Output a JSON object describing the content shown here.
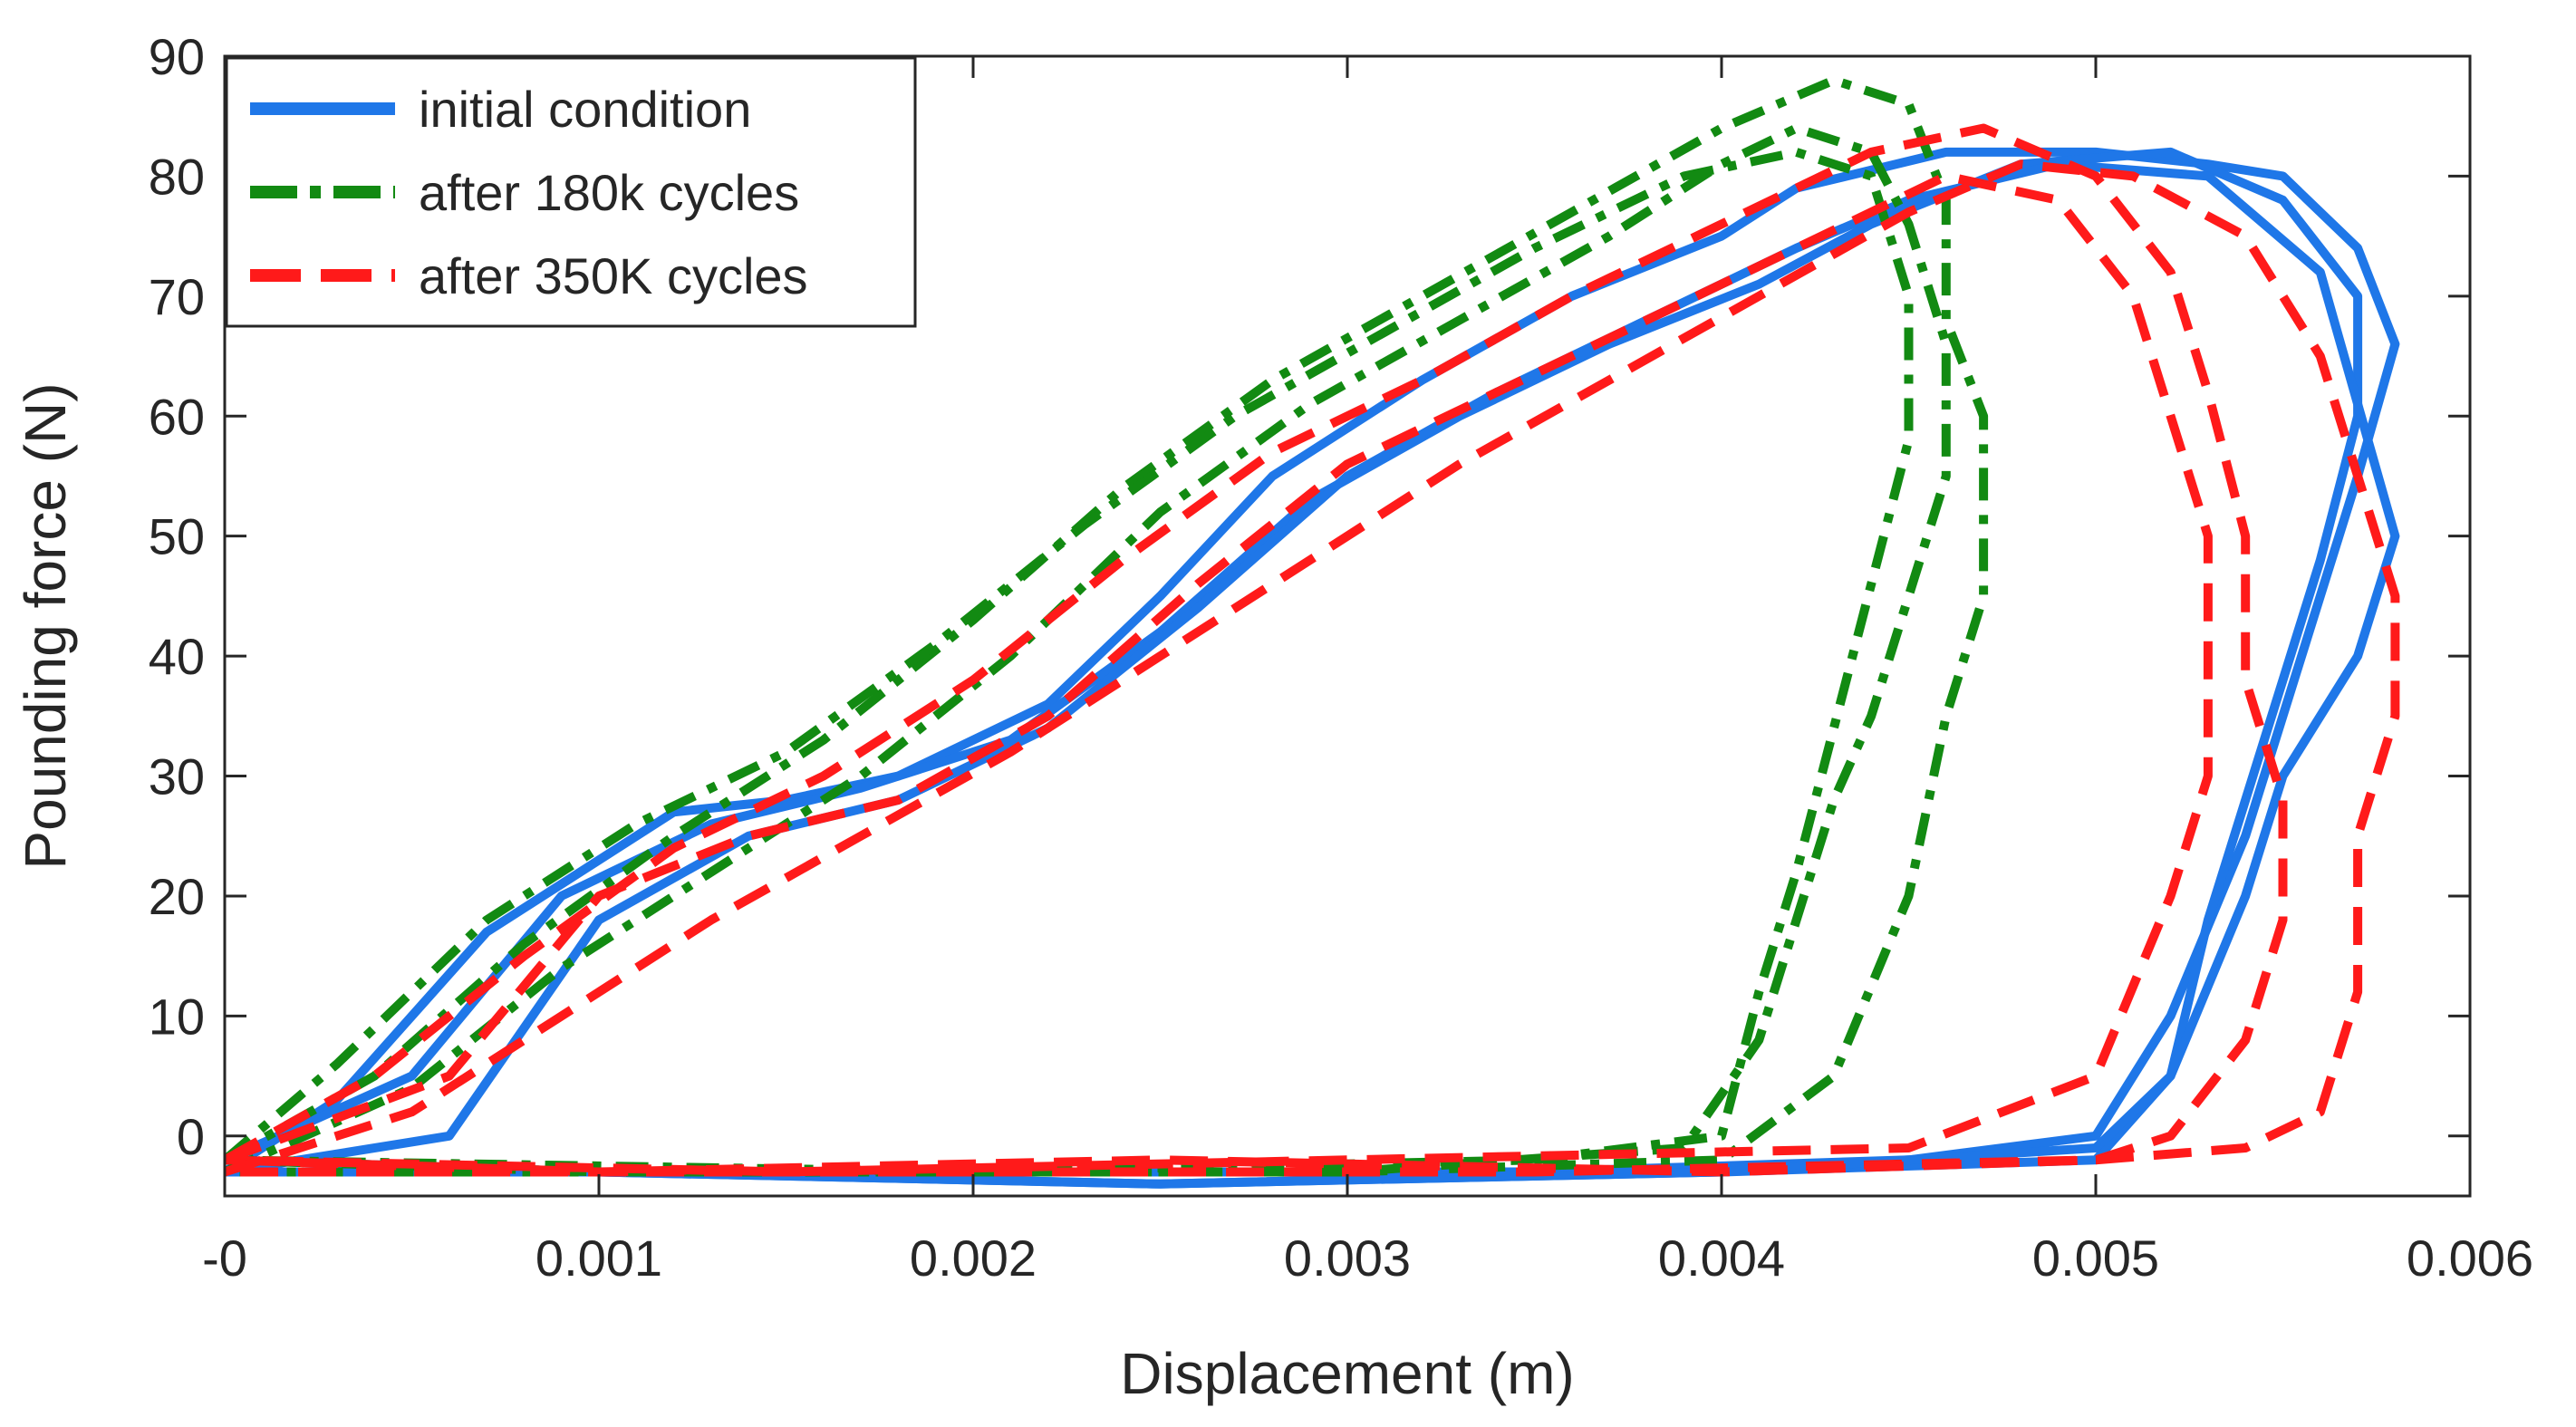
{
  "chart_data": {
    "type": "line",
    "title": "",
    "xlabel": "Displacement (m)",
    "ylabel": "Pounding force (N)",
    "xlim": [
      0,
      0.006
    ],
    "ylim": [
      -5,
      90
    ],
    "xticks": [
      0,
      0.001,
      0.002,
      0.003,
      0.004,
      0.005,
      0.006
    ],
    "xtick_labels": [
      "-0",
      "0.001",
      "0.002",
      "0.003",
      "0.004",
      "0.005",
      "0.006"
    ],
    "yticks": [
      0,
      10,
      20,
      30,
      40,
      50,
      60,
      70,
      80,
      90
    ],
    "ytick_labels": [
      "0",
      "10",
      "20",
      "30",
      "40",
      "50",
      "60",
      "70",
      "80",
      "90"
    ],
    "grid": false,
    "legend_position": "top-left",
    "series": [
      {
        "name": "initial condition",
        "color": "#1f77e8",
        "style": "solid",
        "loops": [
          {
            "x": [
              0.0,
              0.0003,
              0.0007,
              0.0012,
              0.0015,
              0.0018,
              0.0022,
              0.0025,
              0.0028,
              0.0032,
              0.0036,
              0.004,
              0.0042,
              0.0046,
              0.005,
              0.0053,
              0.0055,
              0.0057,
              0.0058,
              0.0057,
              0.0056,
              0.0055,
              0.0054,
              0.0052,
              0.005,
              0.0045,
              0.0035,
              0.002,
              0.001,
              0.0
            ],
            "y": [
              -3,
              3,
              17,
              27,
              28,
              30,
              36,
              45,
              55,
              63,
              70,
              75,
              79,
              82,
              82,
              81,
              80,
              74,
              66,
              55,
              45,
              35,
              25,
              10,
              0,
              -2,
              -3,
              -3,
              -3,
              -3
            ]
          },
          {
            "x": [
              0.0,
              0.0005,
              0.0009,
              0.0013,
              0.0017,
              0.0021,
              0.0025,
              0.0029,
              0.0033,
              0.0037,
              0.0041,
              0.0044,
              0.0048,
              0.0052,
              0.0055,
              0.0057,
              0.0057,
              0.0056,
              0.0055,
              0.0054,
              0.0053,
              0.0052,
              0.005,
              0.004,
              0.0025,
              0.001,
              0.0
            ],
            "y": [
              -2,
              5,
              20,
              26,
              29,
              33,
              42,
              53,
              60,
              66,
              71,
              76,
              81,
              82,
              78,
              70,
              60,
              48,
              38,
              28,
              18,
              5,
              -2,
              -3,
              -4,
              -3,
              -2
            ]
          },
          {
            "x": [
              0.0,
              0.0006,
              0.001,
              0.0014,
              0.0018,
              0.0022,
              0.0026,
              0.003,
              0.0034,
              0.0038,
              0.0042,
              0.0045,
              0.0049,
              0.0053,
              0.0056,
              0.0058,
              0.0057,
              0.0055,
              0.0054,
              0.0052,
              0.005,
              0.004,
              0.0025,
              0.001,
              0.0
            ],
            "y": [
              -3,
              0,
              18,
              25,
              28,
              34,
              44,
              55,
              62,
              68,
              74,
              78,
              81,
              80,
              72,
              50,
              40,
              30,
              20,
              5,
              -1,
              -3,
              -4,
              -3,
              -3
            ]
          }
        ]
      },
      {
        "name": "after 180k cycles",
        "color": "#128a12",
        "style": "dashdot",
        "loops": [
          {
            "x": [
              0.0,
              0.0004,
              0.0008,
              0.0012,
              0.0016,
              0.002,
              0.0024,
              0.0028,
              0.0032,
              0.0036,
              0.004,
              0.0043,
              0.0045,
              0.0046,
              0.0046,
              0.0047,
              0.0047,
              0.0046,
              0.0045,
              0.0043,
              0.004,
              0.003,
              0.002,
              0.001,
              0.0
            ],
            "y": [
              -2,
              5,
              16,
              25,
              33,
              43,
              54,
              63,
              70,
              77,
              84,
              88,
              86,
              78,
              68,
              60,
              45,
              35,
              20,
              5,
              -2,
              -3,
              -3,
              -3,
              -2
            ]
          },
          {
            "x": [
              0.0,
              0.0005,
              0.0009,
              0.0013,
              0.0017,
              0.0021,
              0.0025,
              0.0029,
              0.0033,
              0.0037,
              0.004,
              0.0042,
              0.0044,
              0.0045,
              0.0046,
              0.0046,
              0.0045,
              0.0044,
              0.0043,
              0.0042,
              0.0041,
              0.0039,
              0.003,
              0.0015,
              0.0
            ],
            "y": [
              -3,
              4,
              14,
              22,
              30,
              40,
              52,
              61,
              68,
              75,
              81,
              84,
              82,
              76,
              66,
              55,
              45,
              35,
              28,
              18,
              8,
              -1,
              -3,
              -3,
              -3
            ]
          },
          {
            "x": [
              0.0,
              0.0003,
              0.0007,
              0.0011,
              0.0015,
              0.0019,
              0.0023,
              0.0027,
              0.0031,
              0.0035,
              0.0039,
              0.0042,
              0.0044,
              0.0045,
              0.0045,
              0.0044,
              0.0043,
              0.0042,
              0.0041,
              0.004,
              0.0035,
              0.002,
              0.0
            ],
            "y": [
              -2,
              6,
              18,
              26,
              32,
              41,
              51,
              60,
              67,
              74,
              80,
              82,
              80,
              70,
              58,
              46,
              34,
              22,
              12,
              0,
              -2,
              -3,
              -2
            ]
          }
        ]
      },
      {
        "name": "after 350K cycles",
        "color": "#ff1a1a",
        "style": "dashed",
        "loops": [
          {
            "x": [
              0.0,
              0.0004,
              0.0008,
              0.0012,
              0.0016,
              0.002,
              0.0024,
              0.0028,
              0.0032,
              0.0036,
              0.004,
              0.0044,
              0.0047,
              0.005,
              0.0052,
              0.0053,
              0.0054,
              0.0054,
              0.0055,
              0.0055,
              0.0054,
              0.0052,
              0.005,
              0.004,
              0.0025,
              0.001,
              0.0
            ],
            "y": [
              -2,
              5,
              15,
              24,
              30,
              38,
              48,
              57,
              63,
              70,
              76,
              82,
              84,
              80,
              72,
              62,
              50,
              38,
              28,
              18,
              8,
              0,
              -2,
              -3,
              -2,
              -3,
              -2
            ]
          },
          {
            "x": [
              0.0,
              0.0005,
              0.0009,
              0.0013,
              0.0017,
              0.0021,
              0.0025,
              0.0029,
              0.0033,
              0.0037,
              0.0041,
              0.0045,
              0.0048,
              0.0051,
              0.0054,
              0.0056,
              0.0057,
              0.0058,
              0.0058,
              0.0057,
              0.0057,
              0.0056,
              0.0054,
              0.005,
              0.0035,
              0.002,
              0.0
            ],
            "y": [
              -3,
              2,
              10,
              18,
              25,
              32,
              40,
              48,
              56,
              63,
              70,
              77,
              81,
              80,
              75,
              65,
              55,
              45,
              35,
              25,
              12,
              2,
              -1,
              -2,
              -3,
              -3,
              -3
            ]
          },
          {
            "x": [
              0.0,
              0.0006,
              0.001,
              0.0014,
              0.0018,
              0.0022,
              0.0026,
              0.003,
              0.0034,
              0.0038,
              0.0042,
              0.0046,
              0.0049,
              0.0051,
              0.0052,
              0.0053,
              0.0053,
              0.0053,
              0.0052,
              0.005,
              0.0045,
              0.003,
              0.0015,
              0.0
            ],
            "y": [
              -2,
              5,
              20,
              25,
              28,
              35,
              46,
              56,
              62,
              68,
              74,
              80,
              78,
              70,
              60,
              50,
              40,
              30,
              20,
              5,
              -1,
              -2,
              -3,
              -2
            ]
          }
        ]
      }
    ]
  }
}
